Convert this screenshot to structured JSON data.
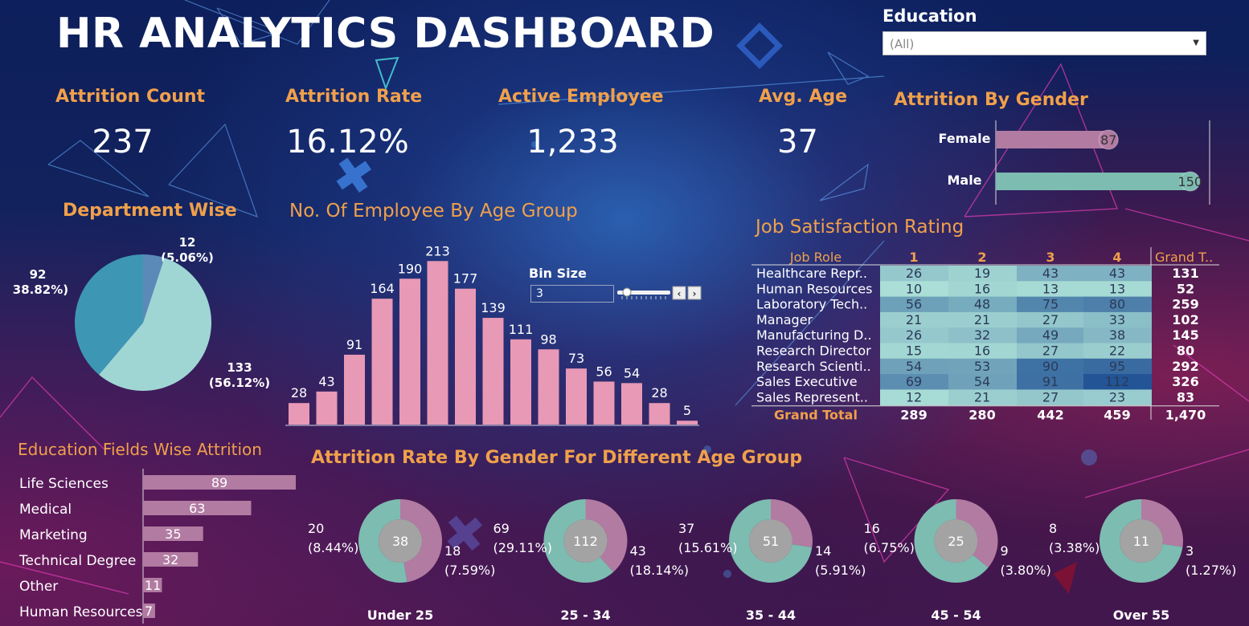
{
  "title": "HR ANALYTICS DASHBOARD",
  "filter": {
    "label": "Education",
    "value": "(All)"
  },
  "kpis": [
    {
      "label": "Attrition Count",
      "value": "237"
    },
    {
      "label": "Attrition Rate",
      "value": "16.12%"
    },
    {
      "label": "Active Employee",
      "value": "1,233"
    },
    {
      "label": "Avg. Age",
      "value": "37"
    }
  ],
  "bin_size": {
    "label": "Bin Size",
    "value": "3"
  },
  "colors": {
    "pink_bar": "#e899b5",
    "mauve": "#b27ba2",
    "teal": "#7dbcb1",
    "light_teal": "#9fd6d4",
    "mid_teal": "#3d96b4",
    "steel_blue": "#5b8ab8",
    "orange_title": "#f0a04b"
  },
  "chart_data": [
    {
      "id": "gender",
      "type": "bar",
      "title": "Attrition By Gender",
      "orientation": "horizontal",
      "categories": [
        "Female",
        "Male"
      ],
      "values": [
        87,
        150
      ],
      "xlim": [
        0,
        165
      ]
    },
    {
      "id": "department",
      "type": "pie",
      "title": "Department Wise",
      "values": [
        12,
        133,
        92
      ],
      "labels": [
        "12\n(5.06%)",
        "133\n(56.12%)",
        "92\n(38.82%)"
      ],
      "label_lines": [
        [
          "12",
          "(5.06%)"
        ],
        [
          "133",
          "(56.12%)"
        ],
        [
          "92",
          "(38.82%)"
        ]
      ],
      "colors": [
        "#5b8ab8",
        "#9fd6d4",
        "#3d96b4"
      ]
    },
    {
      "id": "age_group",
      "type": "bar",
      "title": "No. Of Employee By Age Group",
      "values": [
        28,
        43,
        91,
        164,
        190,
        213,
        177,
        139,
        111,
        98,
        73,
        56,
        54,
        28,
        5
      ],
      "ylim": [
        0,
        230
      ]
    },
    {
      "id": "job_satisfaction",
      "type": "table",
      "title": "Job Satisfaction Rating",
      "columns": [
        "Job Role",
        "1",
        "2",
        "3",
        "4",
        "Grand T.."
      ],
      "rows": [
        {
          "role": "Healthcare Repr..",
          "values": [
            26,
            19,
            43,
            43
          ],
          "total": 131
        },
        {
          "role": "Human Resources",
          "values": [
            10,
            16,
            13,
            13
          ],
          "total": 52
        },
        {
          "role": "Laboratory Tech..",
          "values": [
            56,
            48,
            75,
            80
          ],
          "total": 259
        },
        {
          "role": "Manager",
          "values": [
            21,
            21,
            27,
            33
          ],
          "total": 102
        },
        {
          "role": "Manufacturing D..",
          "values": [
            26,
            32,
            49,
            38
          ],
          "total": 145
        },
        {
          "role": "Research Director",
          "values": [
            15,
            16,
            27,
            22
          ],
          "total": 80
        },
        {
          "role": "Research Scienti..",
          "values": [
            54,
            53,
            90,
            95
          ],
          "total": 292
        },
        {
          "role": "Sales Executive",
          "values": [
            69,
            54,
            91,
            112
          ],
          "total": 326
        },
        {
          "role": "Sales Represent..",
          "values": [
            12,
            21,
            27,
            23
          ],
          "total": 83
        }
      ],
      "grand_total": {
        "label": "Grand Total",
        "values": [
          289,
          280,
          442,
          459
        ],
        "total": "1,470"
      }
    },
    {
      "id": "education_field",
      "type": "bar",
      "title": "Education Fields Wise Attrition",
      "orientation": "horizontal",
      "categories": [
        "Life Sciences",
        "Medical",
        "Marketing",
        "Technical Degree",
        "Other",
        "Human Resources"
      ],
      "values": [
        89,
        63,
        35,
        32,
        11,
        7
      ],
      "xlim": [
        0,
        89
      ]
    },
    {
      "id": "gender_age",
      "type": "pie",
      "title": "Attrition Rate By Gender For Different Age Group",
      "groups": [
        {
          "label": "Under 25",
          "total": 38,
          "male": "20",
          "male_pct": "(8.44%)",
          "female": "18",
          "female_pct": "(7.59%)",
          "male_value": 20,
          "female_value": 18
        },
        {
          "label": "25 - 34",
          "total": 112,
          "male": "69",
          "male_pct": "(29.11%)",
          "female": "43",
          "female_pct": "(18.14%)",
          "male_value": 69,
          "female_value": 43
        },
        {
          "label": "35 - 44",
          "total": 51,
          "male": "37",
          "male_pct": "(15.61%)",
          "female": "14",
          "female_pct": "(5.91%)",
          "male_value": 37,
          "female_value": 14
        },
        {
          "label": "45 - 54",
          "total": 25,
          "male": "16",
          "male_pct": "(6.75%)",
          "female": "9",
          "female_pct": "(3.80%)",
          "male_value": 16,
          "female_value": 9
        },
        {
          "label": "Over 55",
          "total": 11,
          "male": "8",
          "male_pct": "(3.38%)",
          "female": "3",
          "female_pct": "(1.27%)",
          "male_value": 8,
          "female_value": 3
        }
      ]
    }
  ]
}
